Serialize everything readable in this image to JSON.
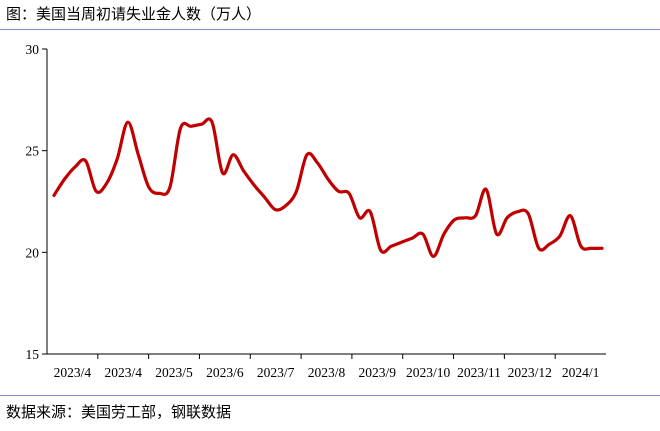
{
  "header": {
    "title": "图：美国当周初请失业金人数（万人）"
  },
  "footer": {
    "source": "数据来源：美国劳工部，钢联数据"
  },
  "colors": {
    "line": "#c00000",
    "axis": "#000000",
    "rule": "#7f8fc4"
  },
  "chart_data": {
    "type": "line",
    "title": "图：美国当周初请失业金人数（万人）",
    "xlabel": "",
    "ylabel": "",
    "ylim": [
      15,
      30
    ],
    "yticks": [
      15,
      20,
      25,
      30
    ],
    "grid": false,
    "xtick_labels": [
      "2023/4",
      "2023/4",
      "2023/5",
      "2023/6",
      "2023/7",
      "2023/8",
      "2023/9",
      "2023/10",
      "2023/11",
      "2023/12",
      "2024/1"
    ],
    "series": [
      {
        "values": [
          22.8,
          23.6,
          24.2,
          24.5,
          23.0,
          23.4,
          24.6,
          26.4,
          24.8,
          23.2,
          22.9,
          23.2,
          26.1,
          26.2,
          26.3,
          26.4,
          23.9,
          24.8,
          24.0,
          23.3,
          22.7,
          22.1,
          22.3,
          23.0,
          24.8,
          24.4,
          23.6,
          23.0,
          22.9,
          21.7,
          22.0,
          20.1,
          20.3,
          20.5,
          20.7,
          20.9,
          19.8,
          20.9,
          21.6,
          21.7,
          21.8,
          23.1,
          20.9,
          21.7,
          22.0,
          21.9,
          20.2,
          20.4,
          20.8,
          21.8,
          20.3,
          20.2,
          20.2
        ]
      }
    ]
  }
}
